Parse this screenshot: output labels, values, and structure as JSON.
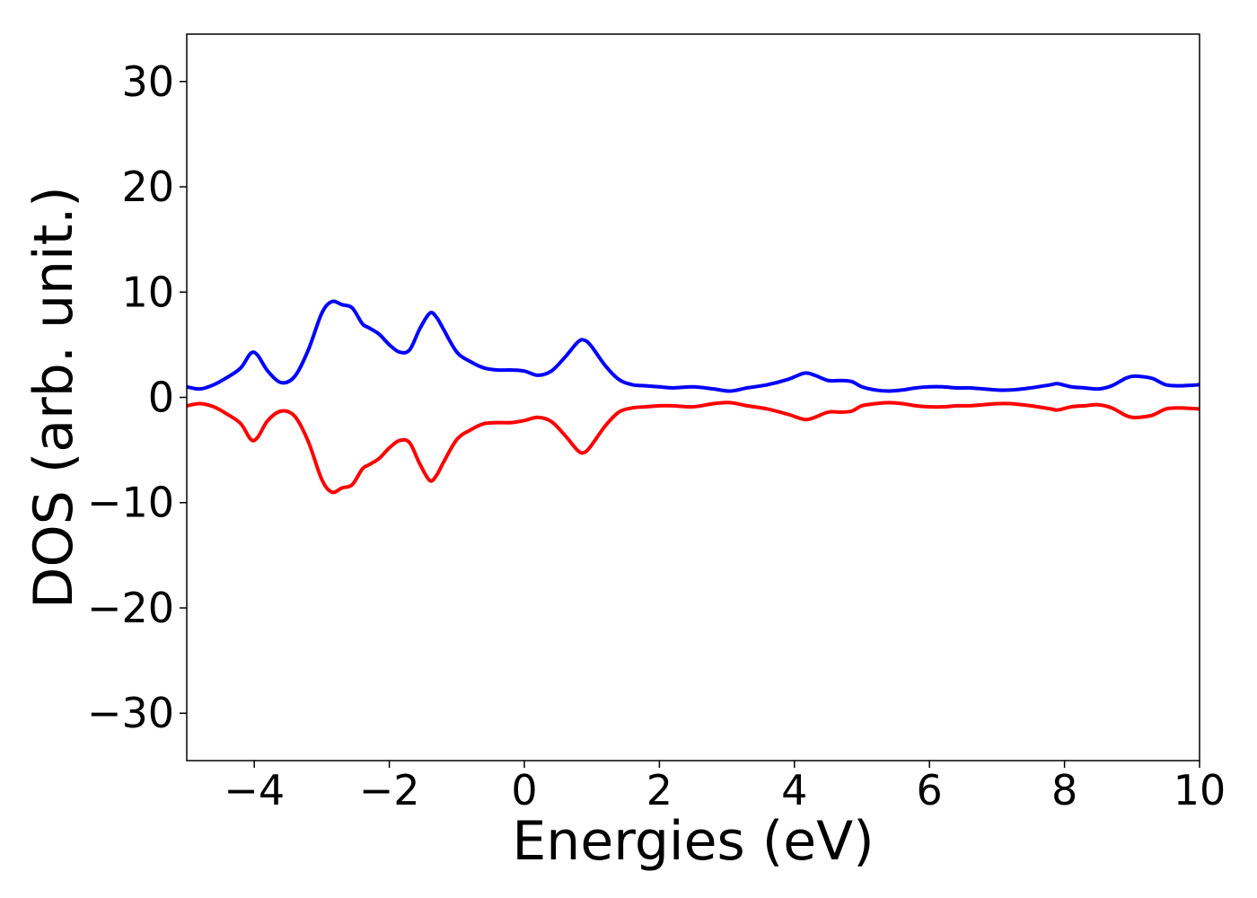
{
  "chart_data": {
    "type": "line",
    "title": "",
    "xlabel": "Energies (eV)",
    "ylabel": "DOS (arb. unit.)",
    "xlim": [
      -5,
      10
    ],
    "ylim": [
      -34.5,
      34.5
    ],
    "xticks": [
      -4,
      -2,
      0,
      2,
      4,
      6,
      8,
      10
    ],
    "yticks": [
      -30,
      -20,
      -10,
      0,
      10,
      20,
      30
    ],
    "xtick_labels": [
      "−4",
      "−2",
      "0",
      "2",
      "4",
      "6",
      "8",
      "10"
    ],
    "ytick_labels": [
      "−30",
      "−20",
      "−10",
      "0",
      "10",
      "20",
      "30"
    ],
    "grid": false,
    "legend": false,
    "series": [
      {
        "color": "#0000ff",
        "x": [
          -5.0,
          -4.8,
          -4.6,
          -4.4,
          -4.2,
          -4.05,
          -3.95,
          -3.8,
          -3.6,
          -3.4,
          -3.2,
          -3.0,
          -2.85,
          -2.7,
          -2.55,
          -2.4,
          -2.3,
          -2.15,
          -2.0,
          -1.85,
          -1.7,
          -1.55,
          -1.4,
          -1.3,
          -1.2,
          -1.0,
          -0.8,
          -0.6,
          -0.4,
          -0.2,
          0.0,
          0.2,
          0.4,
          0.6,
          0.8,
          0.9,
          1.0,
          1.2,
          1.4,
          1.6,
          1.8,
          2.0,
          2.2,
          2.5,
          2.8,
          3.05,
          3.3,
          3.6,
          3.9,
          4.15,
          4.3,
          4.5,
          4.7,
          4.85,
          5.0,
          5.2,
          5.4,
          5.6,
          5.8,
          6.0,
          6.2,
          6.4,
          6.6,
          6.8,
          7.0,
          7.2,
          7.5,
          7.8,
          7.9,
          8.1,
          8.3,
          8.5,
          8.7,
          8.9,
          9.0,
          9.1,
          9.3,
          9.5,
          9.7,
          10.0
        ],
        "y": [
          1.0,
          0.8,
          1.2,
          1.9,
          2.8,
          4.2,
          4.0,
          2.5,
          1.4,
          2.0,
          4.5,
          8.0,
          9.1,
          8.8,
          8.5,
          7.0,
          6.6,
          6.0,
          5.0,
          4.3,
          4.5,
          6.5,
          8.0,
          7.6,
          6.5,
          4.3,
          3.4,
          2.8,
          2.6,
          2.6,
          2.5,
          2.1,
          2.5,
          3.8,
          5.3,
          5.4,
          4.8,
          3.0,
          1.7,
          1.2,
          1.1,
          1.0,
          0.9,
          1.0,
          0.8,
          0.6,
          0.9,
          1.2,
          1.7,
          2.3,
          2.1,
          1.6,
          1.6,
          1.5,
          1.0,
          0.7,
          0.6,
          0.7,
          0.9,
          1.0,
          1.0,
          0.9,
          0.9,
          0.8,
          0.7,
          0.7,
          0.9,
          1.2,
          1.3,
          1.0,
          0.9,
          0.8,
          1.1,
          1.8,
          2.0,
          2.0,
          1.8,
          1.2,
          1.1,
          1.2
        ]
      },
      {
        "color": "#ff0000",
        "x": [
          -5.0,
          -4.8,
          -4.6,
          -4.4,
          -4.2,
          -4.05,
          -3.95,
          -3.8,
          -3.6,
          -3.4,
          -3.2,
          -3.0,
          -2.85,
          -2.7,
          -2.55,
          -2.4,
          -2.3,
          -2.15,
          -2.0,
          -1.85,
          -1.7,
          -1.55,
          -1.4,
          -1.3,
          -1.2,
          -1.0,
          -0.8,
          -0.6,
          -0.4,
          -0.2,
          0.0,
          0.2,
          0.4,
          0.6,
          0.8,
          0.9,
          1.0,
          1.2,
          1.4,
          1.6,
          1.8,
          2.0,
          2.2,
          2.5,
          2.8,
          3.05,
          3.3,
          3.6,
          3.9,
          4.15,
          4.3,
          4.5,
          4.7,
          4.85,
          5.0,
          5.2,
          5.4,
          5.6,
          5.8,
          6.0,
          6.2,
          6.4,
          6.6,
          6.8,
          7.0,
          7.2,
          7.5,
          7.8,
          7.9,
          8.1,
          8.3,
          8.5,
          8.7,
          8.9,
          9.0,
          9.1,
          9.3,
          9.5,
          9.7,
          10.0
        ],
        "y": [
          -0.8,
          -0.6,
          -0.9,
          -1.6,
          -2.5,
          -4.0,
          -3.8,
          -2.2,
          -1.3,
          -1.8,
          -4.2,
          -7.8,
          -9.0,
          -8.6,
          -8.3,
          -6.8,
          -6.4,
          -5.8,
          -4.8,
          -4.1,
          -4.3,
          -6.3,
          -7.9,
          -7.4,
          -6.2,
          -4.0,
          -3.1,
          -2.5,
          -2.4,
          -2.4,
          -2.2,
          -1.9,
          -2.3,
          -3.6,
          -5.1,
          -5.2,
          -4.5,
          -2.7,
          -1.4,
          -1.0,
          -0.9,
          -0.8,
          -0.8,
          -0.9,
          -0.6,
          -0.5,
          -0.8,
          -1.1,
          -1.6,
          -2.1,
          -1.9,
          -1.4,
          -1.4,
          -1.3,
          -0.8,
          -0.6,
          -0.5,
          -0.6,
          -0.8,
          -0.9,
          -0.9,
          -0.8,
          -0.8,
          -0.7,
          -0.6,
          -0.6,
          -0.8,
          -1.1,
          -1.2,
          -0.9,
          -0.8,
          -0.7,
          -1.0,
          -1.7,
          -1.9,
          -1.9,
          -1.7,
          -1.1,
          -1.0,
          -1.1
        ]
      }
    ]
  }
}
